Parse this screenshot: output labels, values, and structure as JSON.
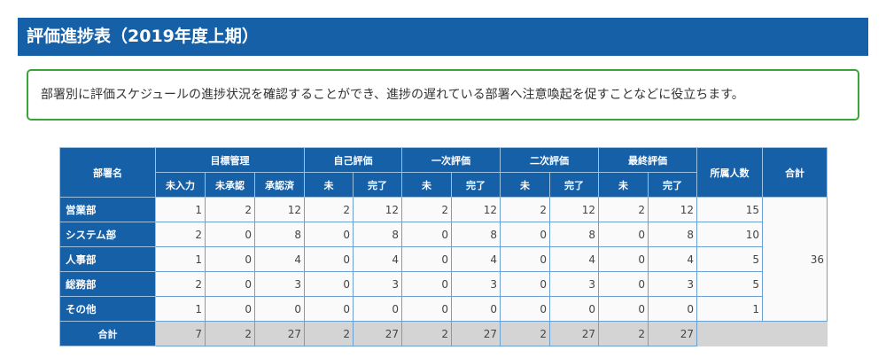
{
  "title": "評価進捗表（2019年度上期）",
  "description": "部署別に評価スケジュールの進捗状況を確認することができ、進捗の遅れている部署へ注意喚起を促すことなどに役立ちます。",
  "colors": {
    "header_blue": "#1660a8",
    "box_green": "#3aa33a",
    "total_row_gray": "#d4d4d4"
  },
  "table": {
    "dept_header": "部署名",
    "groups": [
      {
        "label": "目標管理",
        "sub": [
          "未入力",
          "未承認",
          "承認済"
        ]
      },
      {
        "label": "自己評価",
        "sub": [
          "未",
          "完了"
        ]
      },
      {
        "label": "一次評価",
        "sub": [
          "未",
          "完了"
        ]
      },
      {
        "label": "二次評価",
        "sub": [
          "未",
          "完了"
        ]
      },
      {
        "label": "最終評価",
        "sub": [
          "未",
          "完了"
        ]
      }
    ],
    "members_header": "所属人数",
    "grand_header": "合計",
    "rows": [
      {
        "dept": "営業部",
        "values": [
          "1",
          "2",
          "12",
          "2",
          "12",
          "2",
          "12",
          "2",
          "12",
          "2",
          "12"
        ],
        "members": "15"
      },
      {
        "dept": "システム部",
        "values": [
          "2",
          "0",
          "8",
          "0",
          "8",
          "0",
          "8",
          "0",
          "8",
          "0",
          "8"
        ],
        "members": "10"
      },
      {
        "dept": "人事部",
        "values": [
          "1",
          "0",
          "4",
          "0",
          "4",
          "0",
          "4",
          "0",
          "4",
          "0",
          "4"
        ],
        "members": "5"
      },
      {
        "dept": "総務部",
        "values": [
          "2",
          "0",
          "3",
          "0",
          "3",
          "0",
          "3",
          "0",
          "3",
          "0",
          "3"
        ],
        "members": "5"
      },
      {
        "dept": "その他",
        "values": [
          "1",
          "0",
          "0",
          "0",
          "0",
          "0",
          "0",
          "0",
          "0",
          "0",
          "0"
        ],
        "members": "1"
      }
    ],
    "grand_total": "36",
    "total_row": {
      "label": "合計",
      "values": [
        "7",
        "2",
        "27",
        "2",
        "27",
        "2",
        "27",
        "2",
        "27",
        "2",
        "27"
      ]
    }
  }
}
